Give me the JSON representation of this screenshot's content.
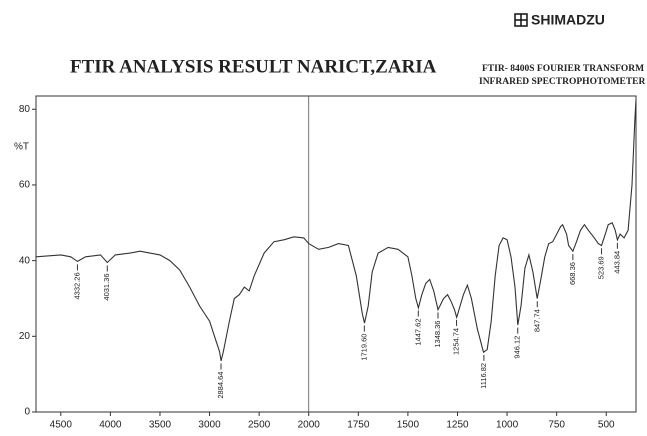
{
  "chart_data": {
    "type": "line",
    "brand": "SHIMADZU",
    "title": "FTIR ANALYSIS RESULT NARICT,ZARIA",
    "subtitle": [
      "FTIR- 8400S FOURIER TRANSFORM",
      "INFRARED SPECTROPHOTOMETER"
    ],
    "ylabel": "%T",
    "xlim": [
      4750,
      350
    ],
    "xbreak": 2000,
    "xticks": [
      4500,
      4000,
      3500,
      3000,
      2500,
      2000,
      1750,
      1500,
      1250,
      1000,
      750,
      500
    ],
    "ylim": [
      0,
      83.5
    ],
    "yticks": [
      0,
      20,
      40,
      60,
      80
    ],
    "color": "#333333",
    "x": [
      4750,
      4500,
      4400,
      4332,
      4250,
      4100,
      4031,
      3950,
      3800,
      3700,
      3600,
      3500,
      3400,
      3300,
      3200,
      3100,
      3000,
      2950,
      2900,
      2884,
      2860,
      2800,
      2750,
      2700,
      2650,
      2600,
      2550,
      2450,
      2350,
      2250,
      2150,
      2050,
      2000,
      1950,
      1900,
      1850,
      1800,
      1760,
      1730,
      1719,
      1700,
      1680,
      1650,
      1600,
      1550,
      1500,
      1480,
      1460,
      1447,
      1430,
      1410,
      1390,
      1370,
      1348,
      1320,
      1300,
      1280,
      1265,
      1254,
      1240,
      1220,
      1200,
      1180,
      1150,
      1119,
      1100,
      1080,
      1060,
      1040,
      1020,
      1000,
      980,
      960,
      946,
      930,
      910,
      890,
      870,
      848,
      830,
      810,
      790,
      770,
      750,
      730,
      720,
      700,
      690,
      668,
      650,
      630,
      610,
      590,
      560,
      540,
      524,
      505,
      490,
      470,
      455,
      444,
      430,
      410,
      390,
      370,
      355,
      350
    ],
    "values": [
      41,
      41.5,
      41,
      39.8,
      41,
      41.5,
      39.5,
      41.5,
      42,
      42.5,
      42,
      41.5,
      40,
      37.5,
      33,
      28,
      24,
      20,
      16,
      13.5,
      16,
      24,
      30,
      31,
      33,
      32,
      36,
      42,
      45,
      45.5,
      46.3,
      46,
      44.5,
      43,
      43.5,
      44.5,
      44,
      36,
      26,
      23.5,
      28,
      37,
      42,
      43.5,
      43,
      41,
      36,
      30,
      27.5,
      31,
      34,
      35,
      32,
      27,
      30,
      31,
      29,
      27,
      25,
      27.5,
      31,
      33.5,
      30,
      22,
      15.8,
      16.5,
      24,
      36,
      44,
      46,
      45.5,
      41,
      33,
      23,
      28,
      38,
      41.5,
      37,
      30,
      35,
      41,
      44.5,
      45,
      47,
      49,
      49.5,
      47,
      44,
      42.5,
      45,
      48,
      49.5,
      48,
      46,
      44.5,
      44,
      47,
      49.5,
      50,
      48,
      45.5,
      47,
      46,
      48,
      60,
      78,
      82.5
    ],
    "peaks": [
      4332.26,
      4031.36,
      2884.64,
      1719.6,
      1447.62,
      1348.36,
      1254.74,
      1116.82,
      946.12,
      847.74,
      668.36,
      523.69,
      443.84
    ],
    "peak_labels": [
      "4332.26",
      "4031.36",
      "2884.64",
      "1719.60",
      "1447.62",
      "1348.36",
      "1254.74",
      "1116.82",
      "946.12",
      "847.74",
      "668.36",
      "523.69",
      "443.84"
    ]
  }
}
